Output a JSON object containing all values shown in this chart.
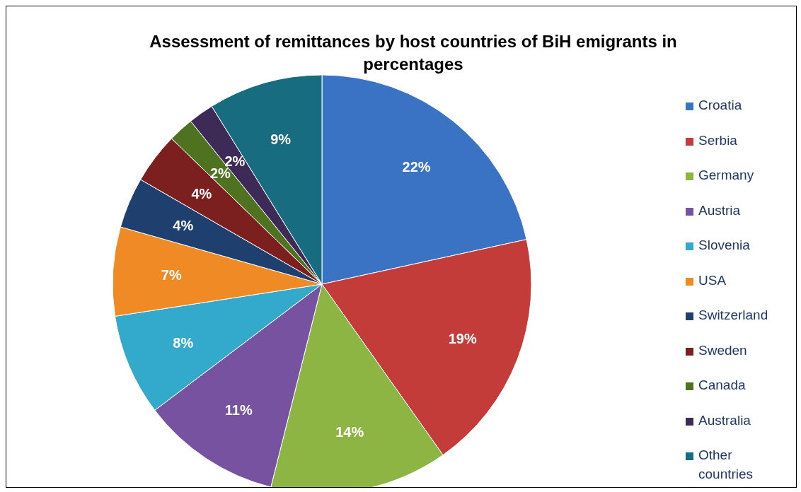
{
  "chart_data": {
    "type": "pie",
    "title": "Assessment of remittances by host countries of BiH emigrants in percentages",
    "categories": [
      "Croatia",
      "Serbia",
      "Germany",
      "Austria",
      "Slovenia",
      "USA",
      "Switzerland",
      "Sweden",
      "Canada",
      "Australia",
      "Other countries"
    ],
    "values": [
      22,
      19,
      14,
      11,
      8,
      7,
      4,
      4,
      2,
      2,
      9
    ],
    "value_labels": [
      "22%",
      "19%",
      "14%",
      "11%",
      "8%",
      "7%",
      "4%",
      "4%",
      "2%",
      "2%",
      "9%"
    ],
    "colors": [
      "#3a72c4",
      "#c43c3a",
      "#8db543",
      "#7652a0",
      "#33a9cc",
      "#f08a24",
      "#1f3f6e",
      "#7b1f1f",
      "#4f7220",
      "#3e2a57",
      "#176c80"
    ],
    "legend": "right"
  }
}
